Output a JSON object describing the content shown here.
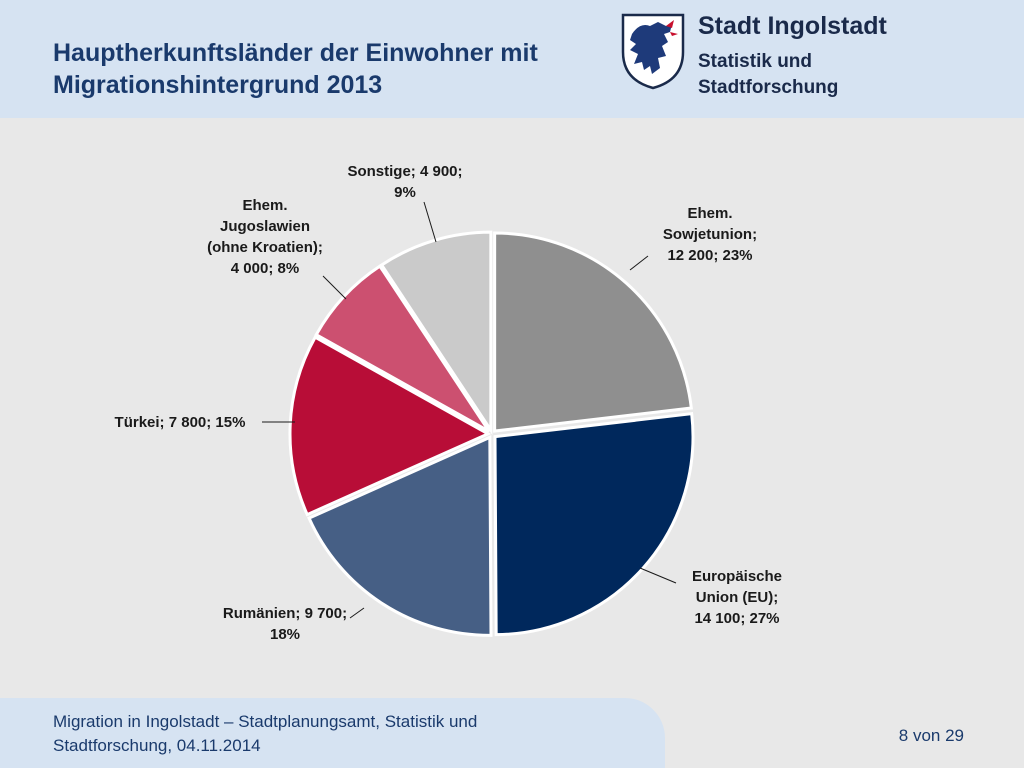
{
  "header": {
    "title_line1": "Hauptherkunftsländer der Einwohner mit",
    "title_line2": "Migrationshintergrund 2013",
    "org_name": "Stadt Ingolstadt",
    "org_sub_line1": "Statistik und",
    "org_sub_line2": "Stadtforschung"
  },
  "chart_data": {
    "type": "pie",
    "title": "Hauptherkunftsländer der Einwohner mit Migrationshintergrund 2013",
    "slices": [
      {
        "label": "Ehem. Sowjetunion",
        "value": 12200,
        "percent": 23,
        "color": "#8f8f8f",
        "label_lines": [
          "Ehem.",
          "Sowjetunion;",
          "12 200; 23%"
        ]
      },
      {
        "label": "Europäische Union (EU)",
        "value": 14100,
        "percent": 27,
        "color": "#00285c",
        "label_lines": [
          "Europäische",
          "Union (EU);",
          "14 100; 27%"
        ]
      },
      {
        "label": "Rumänien",
        "value": 9700,
        "percent": 18,
        "color": "#465f85",
        "label_lines": [
          "Rumänien; 9 700;",
          "18%"
        ]
      },
      {
        "label": "Türkei",
        "value": 7800,
        "percent": 15,
        "color": "#b80d37",
        "label_lines": [
          "Türkei; 7 800; 15%"
        ]
      },
      {
        "label": "Ehem. Jugoslawien (ohne Kroatien)",
        "value": 4000,
        "percent": 8,
        "color": "#cc5070",
        "label_lines": [
          "Ehem.",
          "Jugoslawien",
          "(ohne Kroatien);",
          "4 000; 8%"
        ]
      },
      {
        "label": "Sonstige",
        "value": 4900,
        "percent": 9,
        "color": "#cacaca",
        "label_lines": [
          "Sonstige; 4 900;",
          "9%"
        ]
      }
    ]
  },
  "footer": {
    "line1": "Migration in Ingolstadt – Stadtplanungsamt, Statistik und",
    "line2": "Stadtforschung, 04.11.2014",
    "page": "8 von 29"
  }
}
